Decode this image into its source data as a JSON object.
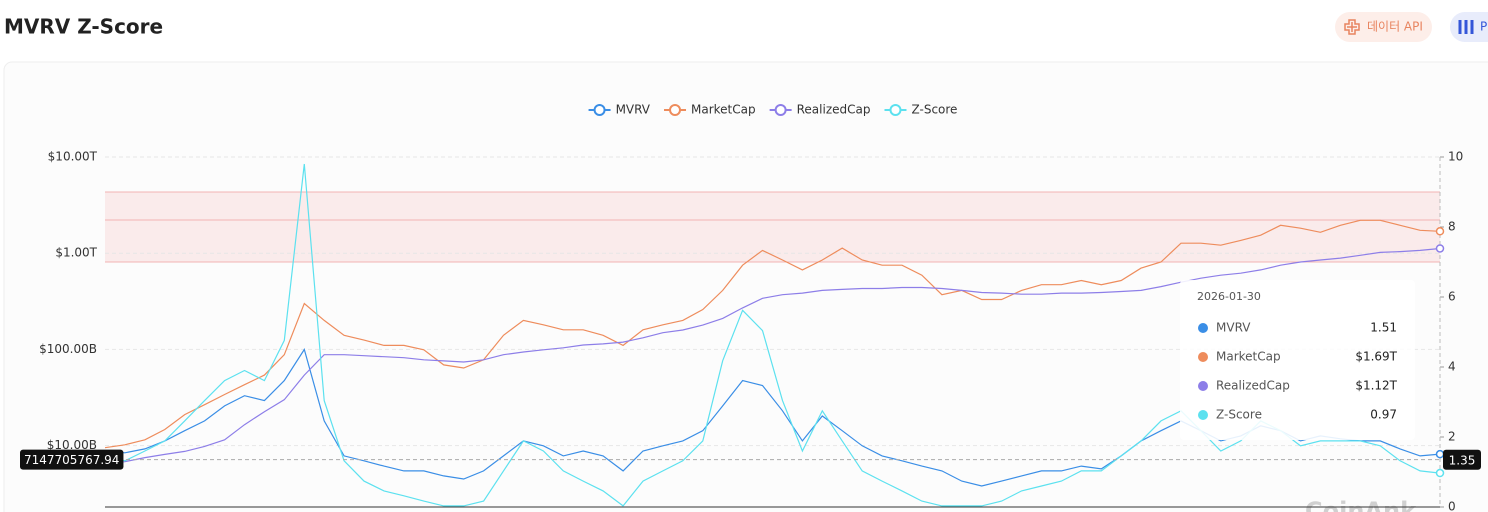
{
  "toolbar": {
    "buttons": [
      "데이터 API",
      "P"
    ]
  },
  "chart_data": {
    "type": "line",
    "title": "MVRV Z-Score",
    "yscale": "log",
    "legend": "top",
    "grid": true,
    "categories": [
      null,
      null,
      null,
      null,
      null,
      null,
      null,
      null,
      null,
      null,
      null,
      null,
      null,
      null,
      null,
      null,
      null,
      null,
      null,
      null,
      null,
      null,
      null,
      null,
      null,
      null,
      null,
      null,
      null,
      null,
      null,
      null,
      null,
      null,
      null,
      null,
      null,
      null,
      null,
      null,
      null,
      null,
      null,
      null,
      null,
      null,
      null,
      null,
      null,
      null,
      null,
      null,
      null,
      null,
      null,
      null,
      null,
      null,
      null,
      null,
      null,
      null,
      null,
      null,
      null,
      null,
      null,
      null
    ],
    "series": [
      {
        "name": "MVRV",
        "color": "#3a8ee6",
        "axis": "y2",
        "values": [
          1.6,
          1.55,
          1.66,
          1.89,
          2.18,
          2.46,
          2.89,
          3.18,
          3.04,
          3.61,
          4.5,
          2.46,
          1.46,
          1.32,
          1.17,
          1.03,
          1.03,
          0.89,
          0.8,
          1.03,
          1.46,
          1.89,
          1.75,
          1.46,
          1.6,
          1.46,
          1.03,
          1.6,
          1.75,
          1.89,
          2.18,
          2.89,
          3.61,
          3.47,
          2.75,
          1.89,
          2.6,
          2.18,
          1.75,
          1.46,
          1.32,
          1.17,
          1.03,
          0.74,
          0.6,
          0.74,
          0.89,
          1.03,
          1.03,
          1.17,
          1.09,
          1.46,
          1.89,
          2.18,
          2.46,
          2.18,
          1.89,
          2.03,
          2.32,
          2.18,
          1.89,
          2.03,
          1.95,
          1.89,
          1.89,
          1.66,
          1.46,
          1.51
        ]
      },
      {
        "name": "MarketCap",
        "color": "#ee8c5c",
        "values": [
          9500000000.0,
          10200000000.0,
          11500000000.0,
          14700000000.0,
          21000000000.0,
          26600000000.0,
          34000000000.0,
          43000000000.0,
          54000000000.0,
          88000000000.0,
          300000000000.0,
          200000000000.0,
          140000000000.0,
          125000000000.0,
          110000000000.0,
          110000000000.0,
          99000000000.0,
          69000000000.0,
          64000000000.0,
          78000000000.0,
          140000000000.0,
          200000000000.0,
          180000000000.0,
          160000000000.0,
          160000000000.0,
          140000000000.0,
          110000000000.0,
          160000000000.0,
          180000000000.0,
          200000000000.0,
          260000000000.0,
          410000000000.0,
          750000000000.0,
          1070000000000.0,
          850000000000.0,
          670000000000.0,
          850000000000.0,
          1130000000000.0,
          850000000000.0,
          750000000000.0,
          750000000000.0,
          590000000000.0,
          370000000000.0,
          410000000000.0,
          330000000000.0,
          330000000000.0,
          410000000000.0,
          470000000000.0,
          470000000000.0,
          520000000000.0,
          470000000000.0,
          520000000000.0,
          700000000000.0,
          810000000000.0,
          1270000000000.0,
          1270000000000.0,
          1210000000000.0,
          1360000000000.0,
          1540000000000.0,
          1950000000000.0,
          1820000000000.0,
          1650000000000.0,
          1950000000000.0,
          2200000000000.0,
          2200000000000.0,
          1950000000000.0,
          1730000000000.0,
          1690000000000.0
        ]
      },
      {
        "name": "RealizedCap",
        "color": "#8d7ee8",
        "values": [
          6400000000.0,
          6800000000.0,
          7500000000.0,
          8100000000.0,
          8700000000.0,
          9800000000.0,
          11500000000.0,
          16500000000.0,
          22500000000.0,
          30000000000.0,
          54000000000.0,
          88000000000.0,
          88000000000.0,
          86000000000.0,
          84000000000.0,
          82000000000.0,
          78000000000.0,
          76000000000.0,
          74000000000.0,
          78000000000.0,
          88000000000.0,
          94000000000.0,
          99000000000.0,
          104000000000.0,
          111000000000.0,
          114000000000.0,
          119000000000.0,
          132000000000.0,
          149000000000.0,
          159000000000.0,
          179000000000.0,
          210000000000.0,
          270000000000.0,
          340000000000.0,
          370000000000.0,
          385000000000.0,
          410000000000.0,
          420000000000.0,
          430000000000.0,
          430000000000.0,
          440000000000.0,
          440000000000.0,
          430000000000.0,
          410000000000.0,
          390000000000.0,
          385000000000.0,
          375000000000.0,
          375000000000.0,
          385000000000.0,
          385000000000.0,
          390000000000.0,
          400000000000.0,
          410000000000.0,
          450000000000.0,
          500000000000.0,
          550000000000.0,
          590000000000.0,
          620000000000.0,
          670000000000.0,
          750000000000.0,
          810000000000.0,
          850000000000.0,
          890000000000.0,
          950000000000.0,
          1020000000000.0,
          1040000000000.0,
          1070000000000.0,
          1120000000000.0
        ]
      },
      {
        "name": "Z-Score",
        "color": "#5ce1ef",
        "axis": "y2",
        "values": [
          1.46,
          1.32,
          1.6,
          1.89,
          2.46,
          3.04,
          3.61,
          3.9,
          3.61,
          4.76,
          9.8,
          3.04,
          1.32,
          0.74,
          0.46,
          0.32,
          0.17,
          0.03,
          0.03,
          0.17,
          1.03,
          1.89,
          1.6,
          1.03,
          0.74,
          0.46,
          0.03,
          0.74,
          1.03,
          1.32,
          1.89,
          4.18,
          5.62,
          5.04,
          3.04,
          1.6,
          2.75,
          1.89,
          1.03,
          0.74,
          0.46,
          0.17,
          0.03,
          0.03,
          0.03,
          0.17,
          0.46,
          0.6,
          0.74,
          1.03,
          1.03,
          1.46,
          1.89,
          2.46,
          2.75,
          2.18,
          1.6,
          1.89,
          2.46,
          2.18,
          1.75,
          1.89,
          1.89,
          1.89,
          1.75,
          1.32,
          1.03,
          0.97
        ]
      }
    ],
    "ylim": [
      2300000000.0,
      10000000000000.0
    ],
    "yticks": [
      {
        "value": 10000000000.0,
        "label": "$10.00B"
      },
      {
        "value": 100000000000.0,
        "label": "$100.00B"
      },
      {
        "value": 1000000000000.0,
        "label": "$1.00T"
      },
      {
        "value": 10000000000000.0,
        "label": "$10.00T"
      }
    ],
    "y2lim": [
      0,
      10
    ],
    "y2ticks": [
      0,
      2,
      4,
      6,
      8,
      10
    ],
    "highlight_band": {
      "axis": "y2",
      "from": 7,
      "to": 9,
      "line": 8.2
    },
    "axis_pointer": {
      "y": 7147705767.94,
      "y2": 1.35
    },
    "tooltip": {
      "date": "2026-01-30",
      "values": [
        1.51,
        1690000000000.0,
        1120000000000.0,
        0.97
      ],
      "value_labels": [
        "1.51",
        "$1.69T",
        "$1.12T",
        "0.97"
      ]
    },
    "watermark": "CoinAnk"
  }
}
